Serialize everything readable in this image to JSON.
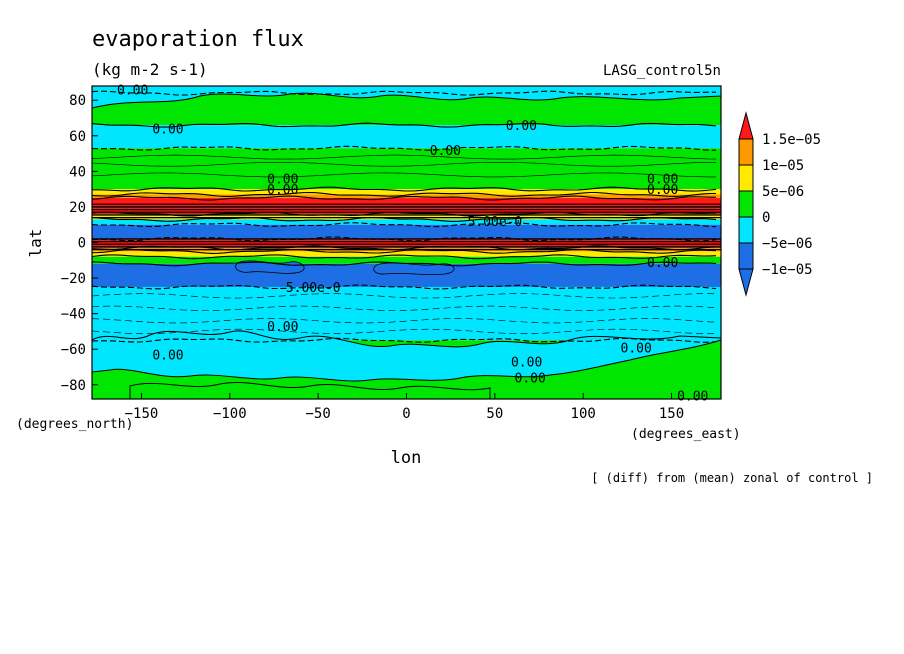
{
  "chart_data": {
    "type": "heatmap",
    "title": "evaporation flux",
    "subtitle": "(kg m-2 s-1)",
    "run_label": "LASG_control5n",
    "xlabel": "lon",
    "ylabel": "lat",
    "x_units": "(degrees_east)",
    "y_units": "(degrees_north)",
    "footnote": "[ (diff) from (mean) zonal of control ]",
    "xlim": [
      -178,
      178
    ],
    "ylim": [
      -88,
      88
    ],
    "x_ticks": [
      -150,
      -100,
      -50,
      0,
      50,
      100,
      150
    ],
    "x_tick_labels": [
      "−150",
      "−100",
      "−50",
      "0",
      "50",
      "100",
      "150"
    ],
    "y_ticks": [
      80,
      60,
      40,
      20,
      0,
      -20,
      -40,
      -60,
      -80
    ],
    "y_tick_labels": [
      "80",
      "60",
      "40",
      "20",
      "0",
      "−20",
      "−40",
      "−60",
      "−80"
    ],
    "grid": false,
    "legend_position": "right",
    "colorbar": {
      "levels": [
        -1.5e-05,
        -1e-05,
        -5e-06,
        0,
        5e-06,
        1e-05,
        1.5e-05,
        2e-05
      ],
      "colors": [
        "#1e6ee6",
        "#1e6ee6",
        "#00e6ff",
        "#00e600",
        "#ffea00",
        "#ff9900",
        "#ff1a1a"
      ],
      "tick_labels": [
        "−1e−05",
        "−5e−06",
        "0",
        "5e−06",
        "1e−05",
        "1.5e−05"
      ]
    },
    "zonal_bands": [
      {
        "lat_max": 88,
        "lat_min": 84,
        "value": -5e-06
      },
      {
        "lat_max": 84,
        "lat_min": 66,
        "value": 3e-06
      },
      {
        "lat_max": 66,
        "lat_min": 53,
        "value": -3e-06
      },
      {
        "lat_max": 53,
        "lat_min": 30,
        "value": 3e-06
      },
      {
        "lat_max": 30,
        "lat_min": 27,
        "value": 7e-06
      },
      {
        "lat_max": 27,
        "lat_min": 25,
        "value": 1.2e-05
      },
      {
        "lat_max": 25,
        "lat_min": 16,
        "value": 1.8e-05
      },
      {
        "lat_max": 16,
        "lat_min": 13,
        "value": 7e-06
      },
      {
        "lat_max": 13,
        "lat_min": 10,
        "value": -3e-06
      },
      {
        "lat_max": 10,
        "lat_min": 2,
        "value": -1.2e-05
      },
      {
        "lat_max": 2,
        "lat_min": -3,
        "value": 1.8e-05
      },
      {
        "lat_max": -3,
        "lat_min": -5,
        "value": 1.2e-05
      },
      {
        "lat_max": -5,
        "lat_min": -8,
        "value": 7e-06
      },
      {
        "lat_max": -8,
        "lat_min": -12,
        "value": 2e-06
      },
      {
        "lat_max": -12,
        "lat_min": -25,
        "value": -1.2e-05
      },
      {
        "lat_max": -25,
        "lat_min": -55,
        "value": -3e-06
      },
      {
        "lat_max": -55,
        "lat_min": -88,
        "value": 3e-06
      }
    ],
    "contour_labels": [
      {
        "text": "0.00",
        "lon": -155,
        "lat": 86
      },
      {
        "text": "0.00",
        "lon": -135,
        "lat": 64
      },
      {
        "text": "0.00",
        "lon": 65,
        "lat": 66
      },
      {
        "text": "0.00",
        "lon": 22,
        "lat": 52
      },
      {
        "text": "0.00",
        "lon": -70,
        "lat": 36
      },
      {
        "text": "0.00",
        "lon": -70,
        "lat": 30
      },
      {
        "text": "0.00",
        "lon": 145,
        "lat": 36
      },
      {
        "text": "0.00",
        "lon": 145,
        "lat": 30
      },
      {
        "text": "5.00e-0",
        "lon": 50,
        "lat": 12
      },
      {
        "text": "0.00",
        "lon": 145,
        "lat": -11
      },
      {
        "text": "-5.00e-0",
        "lon": -55,
        "lat": -25
      },
      {
        "text": "0.00",
        "lon": -70,
        "lat": -47
      },
      {
        "text": "0.00",
        "lon": -135,
        "lat": -63
      },
      {
        "text": "0.00",
        "lon": 68,
        "lat": -67
      },
      {
        "text": "0.00",
        "lon": 130,
        "lat": -59
      },
      {
        "text": "0.00",
        "lon": 70,
        "lat": -76
      },
      {
        "text": "0.00",
        "lon": 162,
        "lat": -86
      }
    ]
  }
}
